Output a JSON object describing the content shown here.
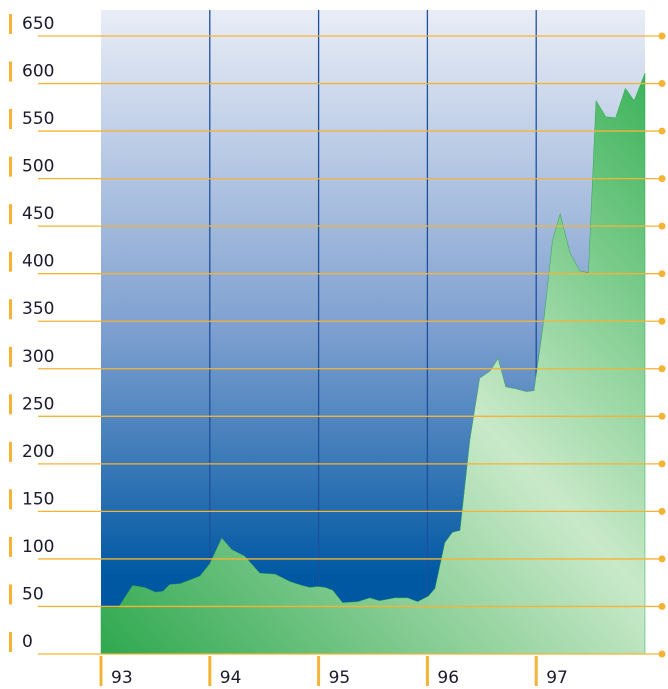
{
  "chart_data": {
    "type": "area",
    "x": [
      93.0,
      93.16,
      93.29,
      93.4,
      93.5,
      93.57,
      93.63,
      93.73,
      93.82,
      93.91,
      94.0,
      94.11,
      94.2,
      94.32,
      94.46,
      94.6,
      94.74,
      94.85,
      94.92,
      94.99,
      95.06,
      95.13,
      95.22,
      95.36,
      95.47,
      95.56,
      95.7,
      95.82,
      95.91,
      96.01,
      96.07,
      96.16,
      96.23,
      96.3,
      96.39,
      96.48,
      96.58,
      96.65,
      96.72,
      96.81,
      96.91,
      96.98,
      97.07,
      97.15,
      97.22,
      97.31,
      97.4,
      97.48,
      97.55,
      97.64,
      97.73,
      97.82,
      97.9,
      98.0
    ],
    "values": [
      49,
      49,
      72,
      70,
      65,
      66,
      73,
      74,
      78,
      82,
      95,
      122,
      110,
      103,
      85,
      84,
      76,
      72,
      70,
      71,
      70,
      67,
      54,
      55,
      59,
      56,
      59,
      59,
      55,
      61,
      69,
      117,
      128,
      130,
      225,
      290,
      298,
      311,
      281,
      279,
      276,
      277,
      351,
      435,
      463,
      422,
      403,
      401,
      582,
      565,
      564,
      595,
      582,
      611
    ],
    "color": "#2ea84e",
    "xlim": [
      93,
      98
    ],
    "xticks": [
      93,
      94,
      95,
      96,
      97
    ],
    "ylim": [
      0,
      650
    ],
    "yticks": [
      0,
      50,
      100,
      150,
      200,
      250,
      300,
      350,
      400,
      450,
      500,
      550,
      600,
      650
    ],
    "grid": true
  }
}
